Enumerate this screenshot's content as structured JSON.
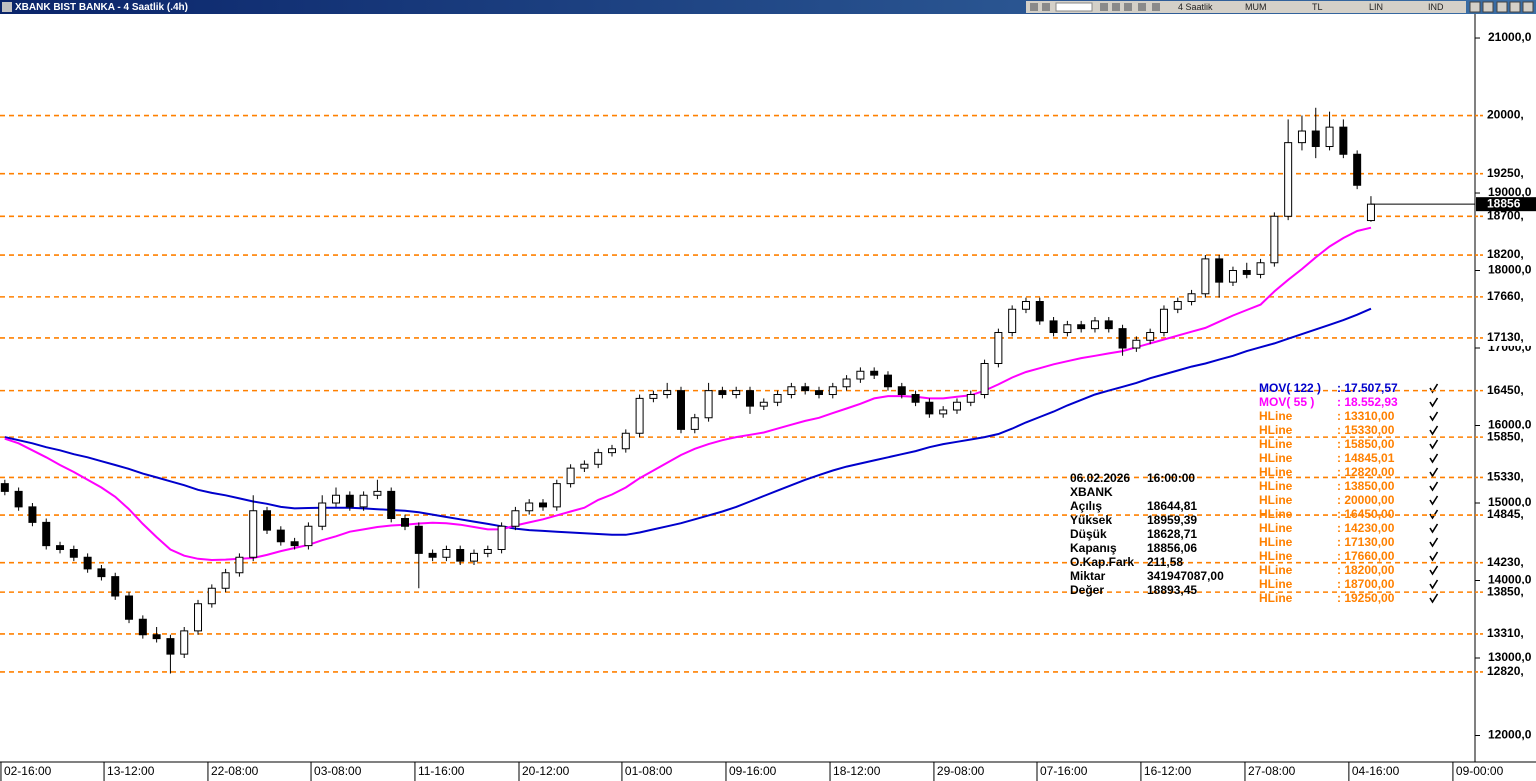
{
  "window": {
    "title": "XBANK BIST BANKA - 4 Saatlik (.4h)",
    "toolbar": [
      "4 Saatlik",
      "MUM",
      "TL",
      "LIN",
      "IND"
    ]
  },
  "chart_data": {
    "type": "candlestick",
    "xlim": [
      -0.35,
      106.54
    ],
    "xticks": [
      {
        "value": -0.28,
        "label": "02-16:00"
      },
      {
        "value": 7.19,
        "label": "13-12:00"
      },
      {
        "value": 14.72,
        "label": "22-08:00"
      },
      {
        "value": 22.19,
        "label": "03-08:00"
      },
      {
        "value": 29.72,
        "label": "11-16:00"
      },
      {
        "value": 37.26,
        "label": "20-12:00"
      },
      {
        "value": 44.72,
        "label": "01-08:00"
      },
      {
        "value": 52.26,
        "label": "09-16:00"
      },
      {
        "value": 59.8,
        "label": "18-12:00"
      },
      {
        "value": 67.33,
        "label": "29-08:00"
      },
      {
        "value": 74.8,
        "label": "07-16:00"
      },
      {
        "value": 82.33,
        "label": "16-12:00"
      },
      {
        "value": 89.87,
        "label": "27-08:00"
      },
      {
        "value": 97.4,
        "label": "04-16:00"
      },
      {
        "value": 104.94,
        "label": "09-00:00"
      }
    ],
    "ylim": [
      11658,
      21310
    ],
    "yticks": [
      {
        "value": 12000,
        "label": "12000,0"
      },
      {
        "value": 13000,
        "label": "13000,0"
      },
      {
        "value": 14000,
        "label": "14000,0"
      },
      {
        "value": 15000,
        "label": "15000,0"
      },
      {
        "value": 16000,
        "label": "16000,0"
      },
      {
        "value": 17000,
        "label": "17000,0"
      },
      {
        "value": 18000,
        "label": "18000,0"
      },
      {
        "value": 19000,
        "label": "19000,0"
      },
      {
        "value": 20000,
        "label": "20000,0"
      },
      {
        "value": 21000,
        "label": "21000,0"
      }
    ],
    "candle_colors": {
      "up": "#ffffff",
      "down": "#000000",
      "outline": "#000000"
    },
    "ohlc": [
      [
        15250,
        15300,
        15100,
        15150
      ],
      [
        15150,
        15200,
        14900,
        14950
      ],
      [
        14950,
        15000,
        14700,
        14750
      ],
      [
        14750,
        14800,
        14400,
        14450
      ],
      [
        14450,
        14500,
        14350,
        14400
      ],
      [
        14400,
        14450,
        14250,
        14300
      ],
      [
        14300,
        14350,
        14100,
        14150
      ],
      [
        14150,
        14200,
        14000,
        14050
      ],
      [
        14050,
        14100,
        13750,
        13800
      ],
      [
        13800,
        13850,
        13450,
        13500
      ],
      [
        13500,
        13550,
        13250,
        13300
      ],
      [
        13300,
        13400,
        13200,
        13250
      ],
      [
        13250,
        13300,
        12800,
        13050
      ],
      [
        13050,
        13400,
        13000,
        13350
      ],
      [
        13350,
        13750,
        13300,
        13700
      ],
      [
        13700,
        13950,
        13650,
        13900
      ],
      [
        13900,
        14150,
        13850,
        14100
      ],
      [
        14100,
        14350,
        14050,
        14300
      ],
      [
        14300,
        15100,
        14250,
        14900
      ],
      [
        14900,
        14950,
        14600,
        14650
      ],
      [
        14650,
        14700,
        14450,
        14500
      ],
      [
        14500,
        14550,
        14400,
        14450
      ],
      [
        14450,
        14750,
        14400,
        14700
      ],
      [
        14700,
        15100,
        14650,
        15000
      ],
      [
        15000,
        15200,
        14950,
        15100
      ],
      [
        15100,
        15150,
        14900,
        14950
      ],
      [
        14950,
        15150,
        14900,
        15100
      ],
      [
        15100,
        15300,
        15050,
        15150
      ],
      [
        15150,
        15200,
        14750,
        14800
      ],
      [
        14800,
        14850,
        14650,
        14700
      ],
      [
        14700,
        14750,
        13900,
        14350
      ],
      [
        14350,
        14400,
        14250,
        14300
      ],
      [
        14300,
        14450,
        14250,
        14400
      ],
      [
        14400,
        14450,
        14200,
        14250
      ],
      [
        14250,
        14400,
        14200,
        14350
      ],
      [
        14350,
        14450,
        14300,
        14400
      ],
      [
        14400,
        14750,
        14350,
        14700
      ],
      [
        14700,
        14950,
        14650,
        14900
      ],
      [
        14900,
        15050,
        14850,
        15000
      ],
      [
        15000,
        15050,
        14900,
        14950
      ],
      [
        14950,
        15300,
        14900,
        15250
      ],
      [
        15250,
        15500,
        15200,
        15450
      ],
      [
        15450,
        15550,
        15400,
        15500
      ],
      [
        15500,
        15700,
        15450,
        15650
      ],
      [
        15650,
        15750,
        15600,
        15700
      ],
      [
        15700,
        15950,
        15650,
        15900
      ],
      [
        15900,
        16400,
        15850,
        16350
      ],
      [
        16350,
        16450,
        16300,
        16400
      ],
      [
        16400,
        16550,
        16350,
        16450
      ],
      [
        16450,
        16500,
        15900,
        15950
      ],
      [
        15950,
        16150,
        15900,
        16100
      ],
      [
        16100,
        16550,
        16050,
        16450
      ],
      [
        16450,
        16500,
        16350,
        16400
      ],
      [
        16400,
        16500,
        16350,
        16450
      ],
      [
        16450,
        16500,
        16150,
        16250
      ],
      [
        16250,
        16350,
        16200,
        16300
      ],
      [
        16300,
        16450,
        16250,
        16400
      ],
      [
        16400,
        16550,
        16350,
        16500
      ],
      [
        16500,
        16550,
        16400,
        16450
      ],
      [
        16450,
        16500,
        16350,
        16400
      ],
      [
        16400,
        16550,
        16350,
        16500
      ],
      [
        16500,
        16650,
        16450,
        16600
      ],
      [
        16600,
        16750,
        16550,
        16700
      ],
      [
        16700,
        16750,
        16600,
        16650
      ],
      [
        16650,
        16700,
        16450,
        16500
      ],
      [
        16500,
        16550,
        16350,
        16400
      ],
      [
        16400,
        16450,
        16250,
        16300
      ],
      [
        16300,
        16350,
        16100,
        16150
      ],
      [
        16150,
        16250,
        16100,
        16200
      ],
      [
        16200,
        16350,
        16150,
        16300
      ],
      [
        16300,
        16450,
        16250,
        16400
      ],
      [
        16400,
        16850,
        16350,
        16800
      ],
      [
        16800,
        17250,
        16750,
        17200
      ],
      [
        17200,
        17550,
        17150,
        17500
      ],
      [
        17500,
        17650,
        17450,
        17600
      ],
      [
        17600,
        17650,
        17300,
        17350
      ],
      [
        17350,
        17400,
        17150,
        17200
      ],
      [
        17200,
        17350,
        17150,
        17300
      ],
      [
        17300,
        17350,
        17200,
        17250
      ],
      [
        17250,
        17400,
        17200,
        17350
      ],
      [
        17350,
        17400,
        17200,
        17250
      ],
      [
        17250,
        17300,
        16900,
        17000
      ],
      [
        17000,
        17150,
        16950,
        17100
      ],
      [
        17100,
        17250,
        17050,
        17200
      ],
      [
        17200,
        17550,
        17150,
        17500
      ],
      [
        17500,
        17650,
        17450,
        17600
      ],
      [
        17600,
        17750,
        17550,
        17700
      ],
      [
        17700,
        18200,
        17650,
        18150
      ],
      [
        18150,
        18200,
        17650,
        17850
      ],
      [
        17850,
        18050,
        17800,
        18000
      ],
      [
        18000,
        18100,
        17900,
        17950
      ],
      [
        17950,
        18150,
        17900,
        18100
      ],
      [
        18100,
        18750,
        18050,
        18700
      ],
      [
        18700,
        19950,
        18650,
        19650
      ],
      [
        19650,
        20000,
        19550,
        19800
      ],
      [
        19800,
        20100,
        19450,
        19600
      ],
      [
        19600,
        20050,
        19550,
        19850
      ],
      [
        19850,
        19950,
        19450,
        19500
      ],
      [
        19500,
        19550,
        19050,
        19100
      ],
      [
        18644.81,
        18959.39,
        18628.71,
        18856.06
      ]
    ],
    "series": [
      {
        "name": "MOV( 122 )",
        "color": "#0000cc",
        "values": [
          15850,
          15810,
          15770,
          15720,
          15680,
          15630,
          15590,
          15540,
          15490,
          15440,
          15380,
          15330,
          15280,
          15230,
          15170,
          15130,
          15100,
          15060,
          15020,
          14990,
          14950,
          14930,
          14935,
          14940,
          14940,
          14940,
          14930,
          14920,
          14910,
          14900,
          14880,
          14850,
          14820,
          14790,
          14760,
          14730,
          14700,
          14670,
          14650,
          14640,
          14630,
          14620,
          14610,
          14600,
          14590,
          14590,
          14620,
          14660,
          14700,
          14740,
          14790,
          14840,
          14890,
          14950,
          15020,
          15090,
          15160,
          15230,
          15300,
          15360,
          15420,
          15470,
          15510,
          15550,
          15590,
          15630,
          15670,
          15720,
          15760,
          15790,
          15820,
          15850,
          15890,
          15960,
          16040,
          16110,
          16180,
          16260,
          16330,
          16400,
          16450,
          16500,
          16550,
          16610,
          16660,
          16710,
          16760,
          16800,
          16850,
          16900,
          16960,
          17010,
          17060,
          17120,
          17180,
          17240,
          17300,
          17360,
          17430,
          17507.57
        ]
      },
      {
        "name": "MOV( 55 )",
        "color": "#ff00ff",
        "values": [
          15830,
          15770,
          15680,
          15590,
          15490,
          15400,
          15300,
          15200,
          15080,
          14920,
          14730,
          14560,
          14400,
          14320,
          14280,
          14265,
          14270,
          14280,
          14290,
          14330,
          14380,
          14420,
          14460,
          14520,
          14570,
          14630,
          14660,
          14690,
          14710,
          14720,
          14735,
          14745,
          14740,
          14720,
          14690,
          14660,
          14660,
          14710,
          14750,
          14790,
          14840,
          14890,
          14940,
          15040,
          15110,
          15200,
          15320,
          15420,
          15520,
          15620,
          15700,
          15760,
          15810,
          15850,
          15880,
          15910,
          15960,
          16010,
          16060,
          16100,
          16160,
          16220,
          16280,
          16350,
          16380,
          16380,
          16370,
          16350,
          16350,
          16370,
          16390,
          16450,
          16530,
          16620,
          16690,
          16740,
          16790,
          16830,
          16870,
          16900,
          16930,
          16960,
          17010,
          17060,
          17110,
          17160,
          17210,
          17260,
          17340,
          17420,
          17490,
          17560,
          17730,
          17880,
          18020,
          18170,
          18310,
          18420,
          18510,
          18552.93
        ]
      }
    ],
    "hline_color": "#ff8000",
    "hlines": [
      {
        "value": 20000,
        "label": "20000,"
      },
      {
        "value": 19250,
        "label": "19250,"
      },
      {
        "value": 18700,
        "label": "18700,"
      },
      {
        "value": 18200,
        "label": "18200,"
      },
      {
        "value": 17660,
        "label": "17660,"
      },
      {
        "value": 17130,
        "label": "17130,"
      },
      {
        "value": 16450,
        "label": "16450,"
      },
      {
        "value": 15850,
        "label": "15850,"
      },
      {
        "value": 15330,
        "label": "15330,"
      },
      {
        "value": 14845.01,
        "label": "14845,"
      },
      {
        "value": 14230,
        "label": "14230,"
      },
      {
        "value": 13850,
        "label": "13850,"
      },
      {
        "value": 13310,
        "label": "13310,"
      },
      {
        "value": 12820,
        "label": "12820,"
      }
    ],
    "last_price": {
      "value": 18856.06,
      "label": "18856"
    },
    "indicator_legend": [
      {
        "name": "MOV( 122 )",
        "value": ": 17.507,57",
        "color": "#0000cc"
      },
      {
        "name": "MOV( 55 )",
        "value": ": 18.552,93",
        "color": "#ff00ff"
      },
      {
        "name": "HLine",
        "value": ": 13310,00",
        "color": "#ff8000"
      },
      {
        "name": "HLine",
        "value": ": 15330,00",
        "color": "#ff8000"
      },
      {
        "name": "HLine",
        "value": ": 15850,00",
        "color": "#ff8000"
      },
      {
        "name": "HLine",
        "value": ": 14845,01",
        "color": "#ff8000"
      },
      {
        "name": "HLine",
        "value": ": 12820,00",
        "color": "#ff8000"
      },
      {
        "name": "HLine",
        "value": ": 13850,00",
        "color": "#ff8000"
      },
      {
        "name": "HLine",
        "value": ": 20000,00",
        "color": "#ff8000"
      },
      {
        "name": "HLine",
        "value": ": 16450,00",
        "color": "#ff8000"
      },
      {
        "name": "HLine",
        "value": ": 14230,00",
        "color": "#ff8000"
      },
      {
        "name": "HLine",
        "value": ": 17130,00",
        "color": "#ff8000"
      },
      {
        "name": "HLine",
        "value": ": 17660,00",
        "color": "#ff8000"
      },
      {
        "name": "HLine",
        "value": ": 18200,00",
        "color": "#ff8000"
      },
      {
        "name": "HLine",
        "value": ": 18700,00",
        "color": "#ff8000"
      },
      {
        "name": "HLine",
        "value": ": 19250,00",
        "color": "#ff8000"
      }
    ],
    "info_panel": {
      "date": "06.02.2026",
      "time": "16:00:00",
      "symbol": "XBANK",
      "rows": [
        [
          "Açılış",
          "18644,81"
        ],
        [
          "Yüksek",
          "18959,39"
        ],
        [
          "Düşük",
          "18628,71"
        ],
        [
          "Kapanış",
          "18856,06"
        ],
        [
          "O.Kap.Fark",
          "211,58"
        ],
        [
          "Miktar",
          "341947087,00"
        ],
        [
          "Değer",
          "18893,45"
        ]
      ]
    }
  }
}
